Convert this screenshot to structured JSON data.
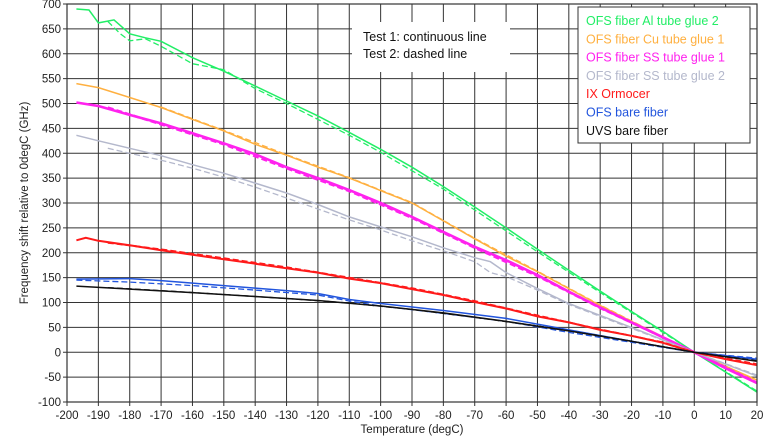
{
  "chart_data": {
    "type": "line",
    "title": "",
    "xlabel": "Temperature (degC)",
    "ylabel": "Frequency shift relative to 0degC (GHz)",
    "xlim": [
      -200,
      20
    ],
    "ylim": [
      -100,
      700
    ],
    "xticks": [
      -200,
      -190,
      -180,
      -170,
      -160,
      -150,
      -140,
      -130,
      -120,
      -110,
      -100,
      -90,
      -80,
      -70,
      -60,
      -50,
      -40,
      -30,
      -20,
      -10,
      0,
      10,
      20
    ],
    "yticks": [
      700,
      650,
      600,
      550,
      500,
      450,
      400,
      350,
      300,
      250,
      200,
      150,
      100,
      50,
      0,
      -50,
      -100
    ],
    "grid": true,
    "legend_position": "top-right",
    "annotations": [
      "Test 1: continuous line",
      "Test 2: dashed line"
    ],
    "series": [
      {
        "name": "OFS fiber Al tube glue 2",
        "color": "#22ee66",
        "test1": [
          [
            -197,
            690
          ],
          [
            -193,
            688
          ],
          [
            -190,
            662
          ],
          [
            -185,
            668
          ],
          [
            -180,
            640
          ],
          [
            -175,
            632
          ],
          [
            -170,
            625
          ],
          [
            -160,
            592
          ],
          [
            -150,
            565
          ],
          [
            -140,
            535
          ],
          [
            -130,
            505
          ],
          [
            -120,
            475
          ],
          [
            -110,
            442
          ],
          [
            -100,
            408
          ],
          [
            -90,
            372
          ],
          [
            -80,
            333
          ],
          [
            -70,
            292
          ],
          [
            -60,
            250
          ],
          [
            -50,
            207
          ],
          [
            -40,
            165
          ],
          [
            -30,
            123
          ],
          [
            -20,
            82
          ],
          [
            -10,
            42
          ],
          [
            0,
            0
          ],
          [
            10,
            -40
          ],
          [
            20,
            -80
          ]
        ],
        "test2": [
          [
            -187,
            665
          ],
          [
            -183,
            640
          ],
          [
            -180,
            626
          ],
          [
            -175,
            630
          ],
          [
            -170,
            615
          ],
          [
            -160,
            580
          ],
          [
            -150,
            568
          ],
          [
            -140,
            530
          ],
          [
            -130,
            500
          ],
          [
            -110,
            436
          ],
          [
            -100,
            402
          ],
          [
            -80,
            328
          ],
          [
            -70,
            286
          ],
          [
            -50,
            202
          ],
          [
            -30,
            120
          ],
          [
            -10,
            40
          ],
          [
            0,
            0
          ],
          [
            20,
            -78
          ]
        ]
      },
      {
        "name": "OFS fiber Cu tube glue 1",
        "color": "#ffb040",
        "test1": [
          [
            -197,
            540
          ],
          [
            -190,
            532
          ],
          [
            -180,
            512
          ],
          [
            -170,
            492
          ],
          [
            -160,
            468
          ],
          [
            -150,
            445
          ],
          [
            -140,
            418
          ],
          [
            -130,
            396
          ],
          [
            -120,
            372
          ],
          [
            -110,
            350
          ],
          [
            -100,
            325
          ],
          [
            -90,
            300
          ],
          [
            -80,
            264
          ],
          [
            -70,
            228
          ],
          [
            -60,
            193
          ],
          [
            -50,
            162
          ],
          [
            -40,
            128
          ],
          [
            -30,
            94
          ],
          [
            -20,
            62
          ],
          [
            -10,
            31
          ],
          [
            0,
            0
          ],
          [
            10,
            -28
          ],
          [
            20,
            -56
          ]
        ],
        "test2": [
          [
            -170,
            493
          ],
          [
            -150,
            446
          ],
          [
            -130,
            397
          ],
          [
            -110,
            351
          ],
          [
            -90,
            301
          ],
          [
            -70,
            229
          ],
          [
            -50,
            163
          ],
          [
            -30,
            95
          ],
          [
            -10,
            31
          ],
          [
            0,
            0
          ],
          [
            20,
            -57
          ]
        ]
      },
      {
        "name": "OFS fiber SS tube glue 1",
        "color": "#ff22ee",
        "test1": [
          [
            -197,
            502
          ],
          [
            -190,
            495
          ],
          [
            -180,
            477
          ],
          [
            -170,
            460
          ],
          [
            -160,
            440
          ],
          [
            -150,
            420
          ],
          [
            -140,
            398
          ],
          [
            -130,
            372
          ],
          [
            -120,
            350
          ],
          [
            -110,
            326
          ],
          [
            -100,
            300
          ],
          [
            -90,
            272
          ],
          [
            -80,
            242
          ],
          [
            -70,
            212
          ],
          [
            -60,
            185
          ],
          [
            -50,
            155
          ],
          [
            -40,
            122
          ],
          [
            -30,
            90
          ],
          [
            -20,
            60
          ],
          [
            -10,
            30
          ],
          [
            0,
            0
          ],
          [
            10,
            -32
          ],
          [
            20,
            -62
          ]
        ],
        "test2": [
          [
            -187,
            492
          ],
          [
            -170,
            458
          ],
          [
            -150,
            418
          ],
          [
            -130,
            370
          ],
          [
            -110,
            324
          ],
          [
            -90,
            270
          ],
          [
            -70,
            210
          ],
          [
            -50,
            153
          ],
          [
            -30,
            89
          ],
          [
            -10,
            30
          ],
          [
            0,
            0
          ],
          [
            20,
            -61
          ]
        ]
      },
      {
        "name": "OFS fiber SS tube glue 2",
        "color": "#b4b8cc",
        "test1": [
          [
            -197,
            436
          ],
          [
            -190,
            425
          ],
          [
            -180,
            410
          ],
          [
            -170,
            395
          ],
          [
            -160,
            377
          ],
          [
            -150,
            360
          ],
          [
            -140,
            340
          ],
          [
            -130,
            320
          ],
          [
            -120,
            297
          ],
          [
            -110,
            272
          ],
          [
            -100,
            252
          ],
          [
            -90,
            232
          ],
          [
            -80,
            210
          ],
          [
            -70,
            190
          ],
          [
            -65,
            182
          ],
          [
            -60,
            160
          ],
          [
            -50,
            128
          ],
          [
            -40,
            98
          ],
          [
            -30,
            74
          ],
          [
            -20,
            50
          ],
          [
            -10,
            25
          ],
          [
            0,
            0
          ],
          [
            10,
            -24
          ],
          [
            20,
            -48
          ]
        ],
        "test2": [
          [
            -187,
            410
          ],
          [
            -180,
            400
          ],
          [
            -170,
            386
          ],
          [
            -160,
            370
          ],
          [
            -150,
            352
          ],
          [
            -140,
            332
          ],
          [
            -130,
            310
          ],
          [
            -120,
            288
          ],
          [
            -110,
            266
          ],
          [
            -100,
            246
          ],
          [
            -90,
            224
          ],
          [
            -80,
            204
          ],
          [
            -70,
            182
          ],
          [
            -65,
            160
          ],
          [
            -60,
            152
          ],
          [
            -50,
            125
          ],
          [
            -40,
            96
          ],
          [
            -30,
            72
          ],
          [
            -20,
            48
          ],
          [
            -10,
            24
          ],
          [
            0,
            0
          ],
          [
            20,
            -46
          ]
        ]
      },
      {
        "name": "IX Ormocer",
        "color": "#ff1a1a",
        "test1": [
          [
            -197,
            225
          ],
          [
            -194,
            230
          ],
          [
            -190,
            224
          ],
          [
            -180,
            215
          ],
          [
            -170,
            205
          ],
          [
            -160,
            196
          ],
          [
            -150,
            187
          ],
          [
            -140,
            178
          ],
          [
            -130,
            169
          ],
          [
            -120,
            160
          ],
          [
            -110,
            148
          ],
          [
            -100,
            139
          ],
          [
            -90,
            127
          ],
          [
            -80,
            115
          ],
          [
            -70,
            101
          ],
          [
            -60,
            88
          ],
          [
            -50,
            72
          ],
          [
            -40,
            60
          ],
          [
            -30,
            45
          ],
          [
            -20,
            33
          ],
          [
            -10,
            19
          ],
          [
            0,
            0
          ],
          [
            10,
            -14
          ],
          [
            20,
            -26
          ]
        ],
        "test2": [
          [
            -187,
            220
          ],
          [
            -170,
            207
          ],
          [
            -150,
            189
          ],
          [
            -130,
            171
          ],
          [
            -110,
            150
          ],
          [
            -90,
            129
          ],
          [
            -70,
            103
          ],
          [
            -50,
            74
          ],
          [
            -30,
            46
          ],
          [
            -10,
            20
          ],
          [
            0,
            0
          ],
          [
            20,
            -24
          ]
        ]
      },
      {
        "name": "OFS bare fiber",
        "color": "#2255dd",
        "test1": [
          [
            -197,
            147
          ],
          [
            -180,
            148
          ],
          [
            -170,
            144
          ],
          [
            -160,
            139
          ],
          [
            -150,
            134
          ],
          [
            -140,
            129
          ],
          [
            -130,
            124
          ],
          [
            -120,
            118
          ],
          [
            -110,
            106
          ],
          [
            -100,
            98
          ],
          [
            -80,
            84
          ],
          [
            -60,
            68
          ],
          [
            -40,
            45
          ],
          [
            -20,
            22
          ],
          [
            0,
            0
          ],
          [
            10,
            -7
          ],
          [
            20,
            -14
          ]
        ],
        "test2": [
          [
            -197,
            145
          ],
          [
            -180,
            141
          ],
          [
            -160,
            134
          ],
          [
            -140,
            125
          ],
          [
            -120,
            115
          ],
          [
            -110,
            103
          ],
          [
            -100,
            93
          ],
          [
            -80,
            78
          ],
          [
            -60,
            62
          ],
          [
            -40,
            40
          ],
          [
            -20,
            20
          ],
          [
            0,
            0
          ],
          [
            20,
            -12
          ]
        ]
      },
      {
        "name": "UVS bare fiber",
        "color": "#111111",
        "test1": [
          [
            -197,
            133
          ],
          [
            -180,
            127
          ],
          [
            -160,
            120
          ],
          [
            -140,
            112
          ],
          [
            -120,
            104
          ],
          [
            -100,
            93
          ],
          [
            -80,
            79
          ],
          [
            -60,
            62
          ],
          [
            -40,
            43
          ],
          [
            -20,
            22
          ],
          [
            0,
            0
          ],
          [
            10,
            -9
          ],
          [
            20,
            -18
          ]
        ],
        "test2": [
          [
            -187,
            130
          ],
          [
            -170,
            124
          ],
          [
            -150,
            116
          ],
          [
            -130,
            108
          ],
          [
            -110,
            99
          ],
          [
            -90,
            86
          ],
          [
            -70,
            70
          ],
          [
            -50,
            53
          ],
          [
            -30,
            33
          ],
          [
            -10,
            11
          ],
          [
            0,
            0
          ],
          [
            20,
            -17
          ]
        ]
      }
    ]
  }
}
